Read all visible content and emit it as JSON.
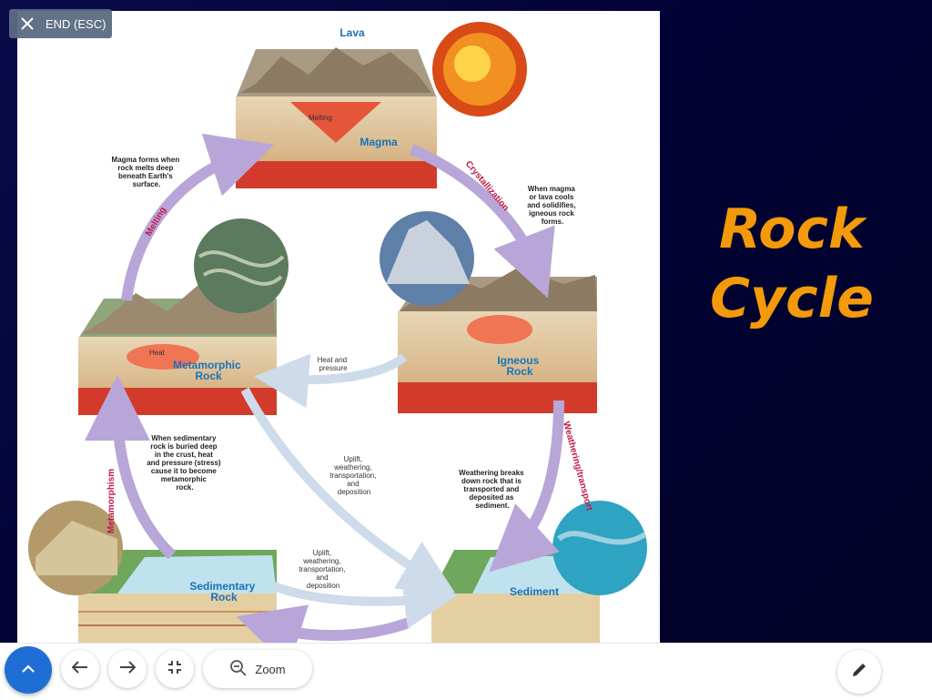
{
  "toolbar_top": {
    "end_label": "END (ESC)"
  },
  "slide": {
    "title_line1": "Rock",
    "title_line2": "Cycle",
    "diagram": {
      "lava": "Lava",
      "melting_small": "Melting",
      "magma": "Magma",
      "magma_note": [
        "Magma forms when",
        "rock melts deep",
        "beneath Earth's",
        "surface."
      ],
      "melting_arrow": "Melting",
      "crystallization_arrow": "Crystallization",
      "crystal_note": [
        "When magma",
        "or lava cools",
        "and solidifies,",
        "igneous rock",
        "forms."
      ],
      "heat_small": "Heat",
      "metamorphic": [
        "Metamorphic",
        "Rock"
      ],
      "igneous": [
        "Igneous",
        "Rock"
      ],
      "heat_pressure": [
        "Heat and",
        "pressure"
      ],
      "weathering_arrow": "Weathering/transport",
      "weathering_note": [
        "Weathering breaks",
        "down rock that is",
        "transported and",
        "deposited as",
        "sediment."
      ],
      "uplift_center": [
        "Uplift,",
        "weathering,",
        "transportation,",
        "and",
        "deposition"
      ],
      "uplift_bottom": [
        "Uplift,",
        "weathering,",
        "transportation,",
        "and",
        "deposition"
      ],
      "metamorphism_arrow": "Metamorphism",
      "sedimentary_note": [
        "When sedimentary",
        "rock is buried deep",
        "in the crust, heat",
        "and pressure (stress)",
        "cause it to become",
        "metamorphic",
        "rock."
      ],
      "sedimentary": [
        "Sedimentary",
        "Rock"
      ],
      "sediment": "Sediment"
    }
  },
  "bottombar": {
    "zoom_label": "Zoom"
  },
  "colors": {
    "title": "#f39a0a",
    "arrow": "#b9a6d8",
    "label_blue": "#1a73b8",
    "label_red": "#c0184a",
    "nav_blue": "#1f6ed4"
  }
}
